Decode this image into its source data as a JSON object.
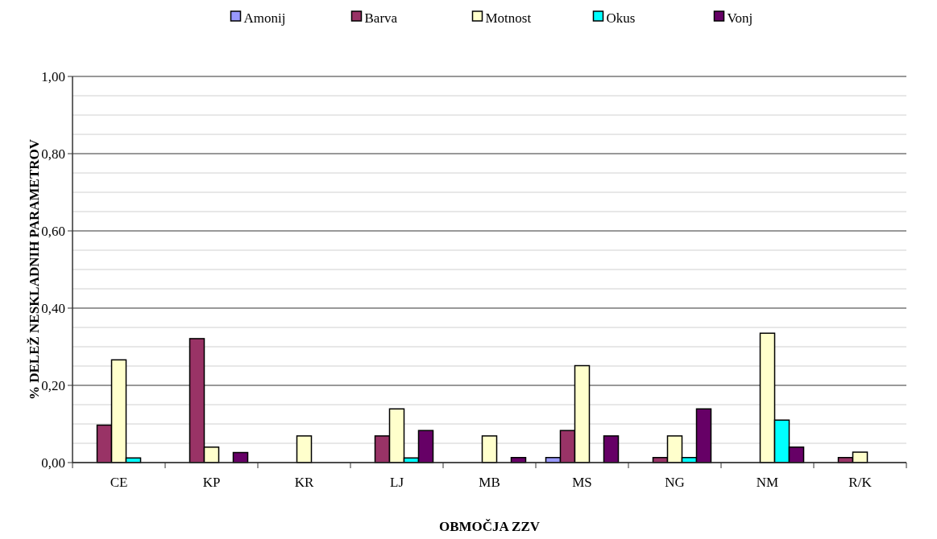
{
  "chart_data": {
    "type": "bar",
    "xlabel": "OBMOČJA ZZV",
    "ylabel": "% DELEŽ NESKLADNIH PARAMETROV",
    "categories": [
      "CE",
      "KP",
      "KR",
      "LJ",
      "MB",
      "MS",
      "NG",
      "NM",
      "R/K"
    ],
    "series": [
      {
        "name": "Amonij",
        "color": "#9999ff",
        "values": [
          0,
          0,
          0,
          0,
          0,
          0.013,
          0,
          0,
          0
        ]
      },
      {
        "name": "Barva",
        "color": "#993366",
        "values": [
          0.097,
          0.321,
          0,
          0.069,
          0,
          0.083,
          0.013,
          0,
          0.013
        ]
      },
      {
        "name": "Motnost",
        "color": "#ffffcc",
        "values": [
          0.266,
          0.04,
          0.069,
          0.139,
          0.069,
          0.251,
          0.069,
          0.335,
          0.027
        ]
      },
      {
        "name": "Okus",
        "color": "#00ffff",
        "values": [
          0.012,
          0,
          0,
          0.012,
          0,
          0,
          0.013,
          0.11,
          0
        ]
      },
      {
        "name": "Vonj",
        "color": "#660066",
        "values": [
          0,
          0.026,
          0,
          0.083,
          0.013,
          0.069,
          0.139,
          0.04,
          0
        ]
      }
    ],
    "ylim": [
      0,
      1
    ],
    "yticks": [
      {
        "value": 0,
        "label": "0,00"
      },
      {
        "value": 0.05,
        "label": null
      },
      {
        "value": 0.1,
        "label": null
      },
      {
        "value": 0.15,
        "label": null
      },
      {
        "value": 0.2,
        "label": "0,20"
      },
      {
        "value": 0.25,
        "label": null
      },
      {
        "value": 0.3,
        "label": null
      },
      {
        "value": 0.35,
        "label": null
      },
      {
        "value": 0.4,
        "label": "0,40"
      },
      {
        "value": 0.45,
        "label": null
      },
      {
        "value": 0.5,
        "label": null
      },
      {
        "value": 0.55,
        "label": null
      },
      {
        "value": 0.6,
        "label": "0,60"
      },
      {
        "value": 0.65,
        "label": null
      },
      {
        "value": 0.7,
        "label": null
      },
      {
        "value": 0.75,
        "label": null
      },
      {
        "value": 0.8,
        "label": "0,80"
      },
      {
        "value": 0.85,
        "label": null
      },
      {
        "value": 0.9,
        "label": null
      },
      {
        "value": 0.95,
        "label": null
      },
      {
        "value": 1,
        "label": "1,00"
      }
    ],
    "grid": "y",
    "legend": "top"
  }
}
